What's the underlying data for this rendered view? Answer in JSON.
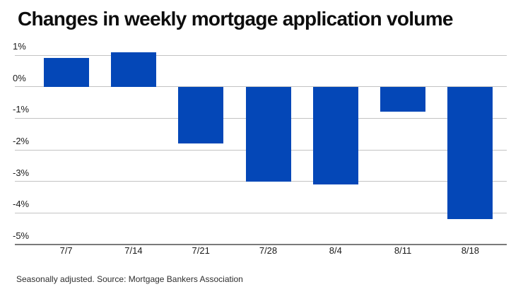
{
  "title": "Changes in weekly mortgage application volume",
  "footer": "Seasonally adjusted. Source: Mortgage Bankers Association",
  "colors": {
    "background": "#ffffff",
    "bar": "#0447b7",
    "gridline": "#c3c3c3",
    "axis_line": "#7a7a7a",
    "title_text": "#0d0d0d",
    "tick_text": "#1a1a1a",
    "footer_text": "#2e2e2e"
  },
  "chart_data": {
    "type": "bar",
    "title": "Changes in weekly mortgage application volume",
    "categories": [
      "7/7",
      "7/14",
      "7/21",
      "7/28",
      "8/4",
      "8/11",
      "8/18"
    ],
    "values": [
      0.9,
      1.1,
      -1.8,
      -3.0,
      -3.1,
      -0.8,
      -4.2
    ],
    "xlabel": "",
    "ylabel": "",
    "ylim": [
      -5,
      1
    ],
    "y_ticks": [
      1,
      0,
      -1,
      -2,
      -3,
      -4,
      -5
    ],
    "y_tick_labels": [
      "1%",
      "0%",
      "-1%",
      "-2%",
      "-3%",
      "-4%",
      "-5%"
    ],
    "grid": true,
    "legend": false,
    "source_note": "Seasonally adjusted. Source: Mortgage Bankers Association"
  }
}
